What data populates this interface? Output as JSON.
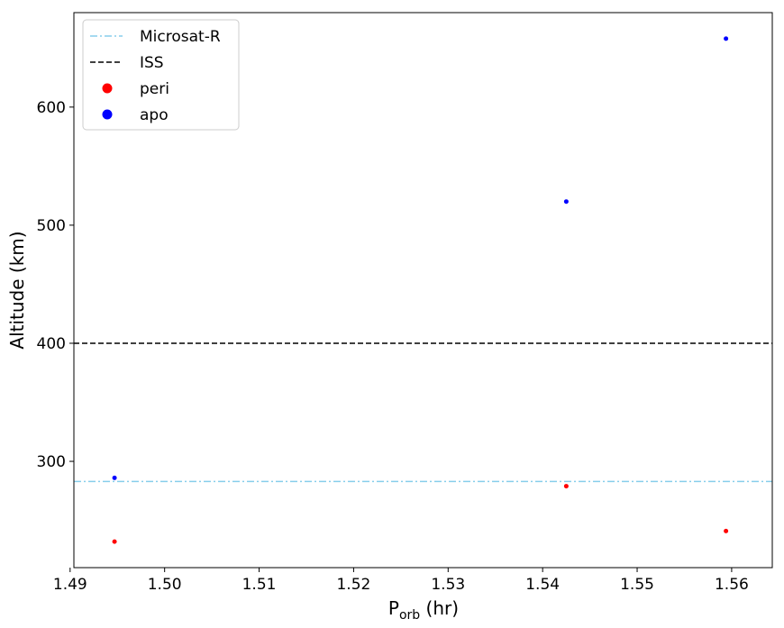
{
  "chart_data": {
    "type": "scatter",
    "xlabel_main": "P",
    "xlabel_sub": "orb",
    "xlabel_unit": " (hr)",
    "ylabel": "Altitude (km)",
    "xlim": [
      1.4904,
      1.5643
    ],
    "ylim": [
      210,
      680
    ],
    "xticks": [
      1.49,
      1.5,
      1.51,
      1.52,
      1.53,
      1.54,
      1.55,
      1.56
    ],
    "xtick_labels": [
      "1.49",
      "1.50",
      "1.51",
      "1.52",
      "1.53",
      "1.54",
      "1.55",
      "1.56"
    ],
    "yticks": [
      300,
      400,
      500,
      600
    ],
    "ytick_labels": [
      "300",
      "400",
      "500",
      "600"
    ],
    "hlines": [
      {
        "name": "Microsat-R",
        "y": 283,
        "color": "#87ceeb",
        "style": "dashdot"
      },
      {
        "name": "ISS",
        "y": 400,
        "color": "#000000",
        "style": "dashed"
      }
    ],
    "series": [
      {
        "name": "peri",
        "color": "#ff0000",
        "x": [
          1.4947,
          1.5425,
          1.5594
        ],
        "y": [
          232,
          279,
          241
        ]
      },
      {
        "name": "apo",
        "color": "#0000ff",
        "x": [
          1.4947,
          1.5425,
          1.5594
        ],
        "y": [
          286,
          520,
          658
        ]
      }
    ],
    "legend": {
      "position": "top-left",
      "entries": [
        "Microsat-R",
        "ISS",
        "peri",
        "apo"
      ]
    },
    "grid": false
  }
}
